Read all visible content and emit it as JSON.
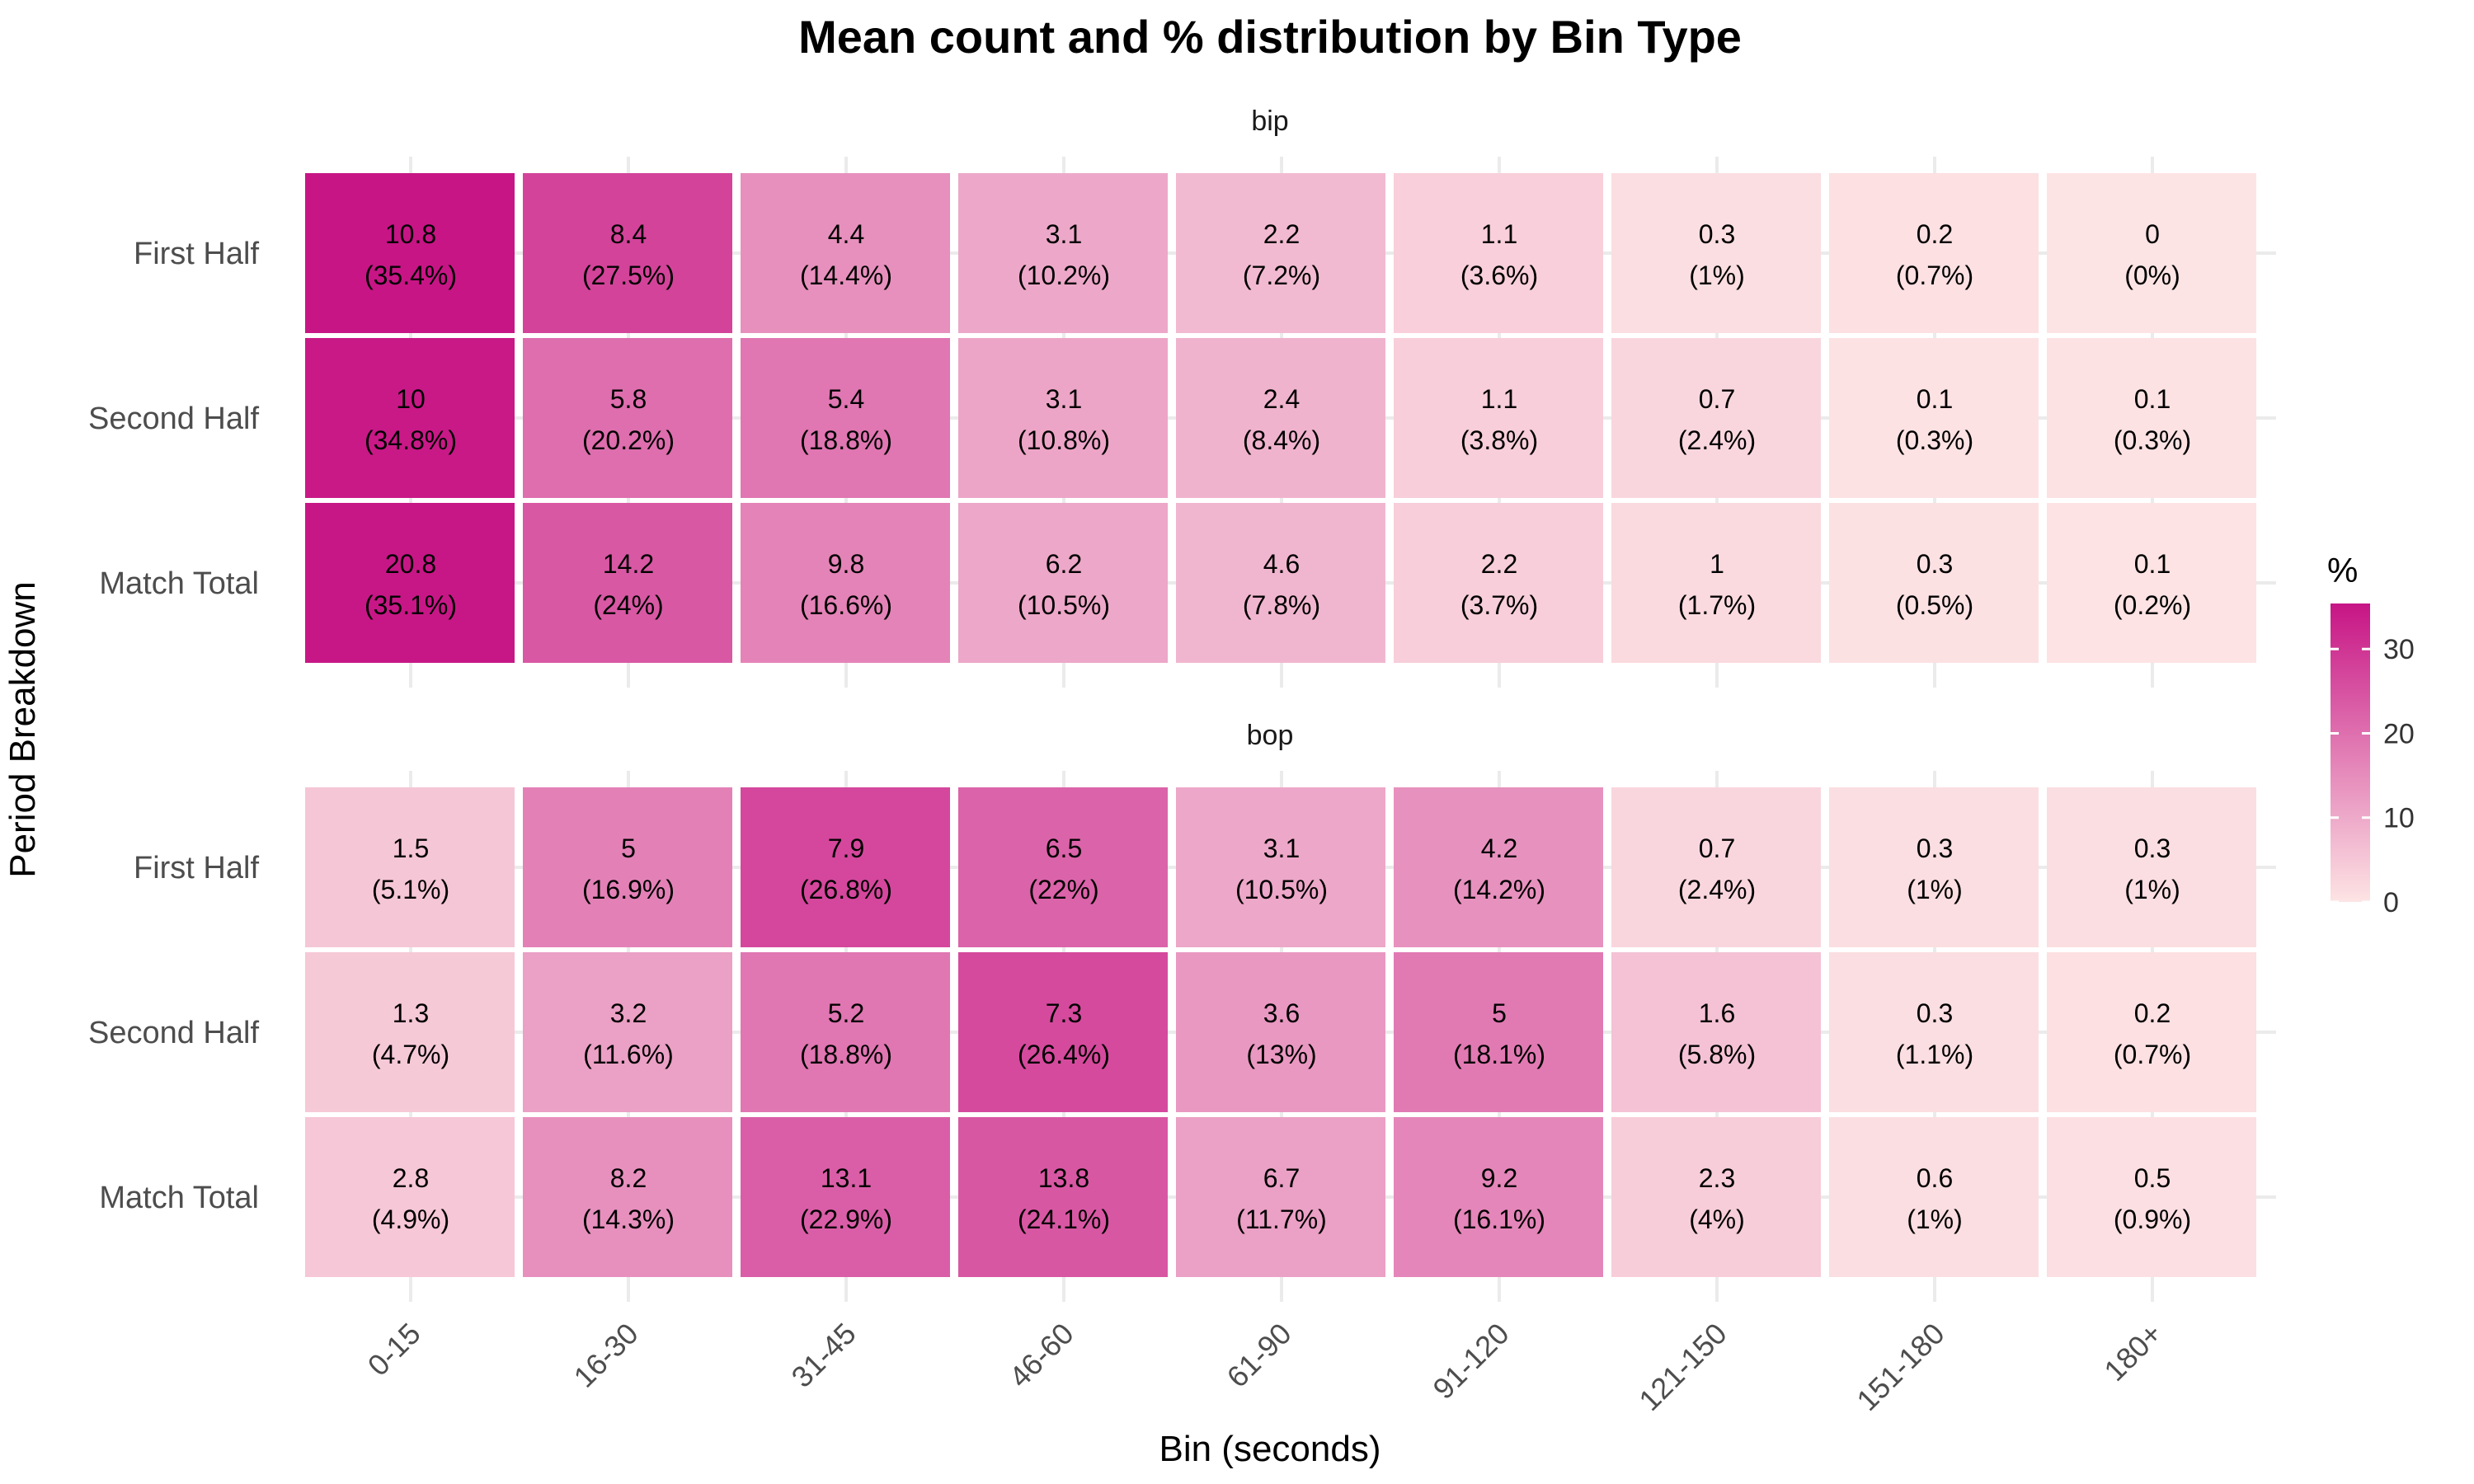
{
  "chart_data": {
    "type": "heatmap",
    "title": "Mean count and % distribution by Bin Type",
    "xlabel": "Bin (seconds)",
    "ylabel": "Period Breakdown",
    "x_categories": [
      "0-15",
      "16-30",
      "31-45",
      "46-60",
      "61-90",
      "91-120",
      "121-150",
      "151-180",
      "180+"
    ],
    "y_categories": [
      "First Half",
      "Second Half",
      "Match Total"
    ],
    "legend": {
      "title": "%",
      "placement": "right",
      "ticks": [
        0,
        10,
        20,
        30
      ],
      "range": [
        0,
        35.4
      ],
      "color_low": "#fde4e4",
      "color_high": "#c71585"
    },
    "facets": [
      {
        "name": "bip",
        "rows": [
          {
            "period": "First Half",
            "counts": [
              10.8,
              8.4,
              4.4,
              3.1,
              2.2,
              1.1,
              0.3,
              0.2,
              0
            ],
            "percents": [
              35.4,
              27.5,
              14.4,
              10.2,
              7.2,
              3.6,
              1,
              0.7,
              0
            ],
            "labels": [
              [
                "10.8",
                "(35.4%)"
              ],
              [
                "8.4",
                "(27.5%)"
              ],
              [
                "4.4",
                "(14.4%)"
              ],
              [
                "3.1",
                "(10.2%)"
              ],
              [
                "2.2",
                "(7.2%)"
              ],
              [
                "1.1",
                "(3.6%)"
              ],
              [
                "0.3",
                "(1%)"
              ],
              [
                "0.2",
                "(0.7%)"
              ],
              [
                "0",
                "(0%)"
              ]
            ]
          },
          {
            "period": "Second Half",
            "counts": [
              10,
              5.8,
              5.4,
              3.1,
              2.4,
              1.1,
              0.7,
              0.1,
              0.1
            ],
            "percents": [
              34.8,
              20.2,
              18.8,
              10.8,
              8.4,
              3.8,
              2.4,
              0.3,
              0.3
            ],
            "labels": [
              [
                "10",
                "(34.8%)"
              ],
              [
                "5.8",
                "(20.2%)"
              ],
              [
                "5.4",
                "(18.8%)"
              ],
              [
                "3.1",
                "(10.8%)"
              ],
              [
                "2.4",
                "(8.4%)"
              ],
              [
                "1.1",
                "(3.8%)"
              ],
              [
                "0.7",
                "(2.4%)"
              ],
              [
                "0.1",
                "(0.3%)"
              ],
              [
                "0.1",
                "(0.3%)"
              ]
            ]
          },
          {
            "period": "Match Total",
            "counts": [
              20.8,
              14.2,
              9.8,
              6.2,
              4.6,
              2.2,
              1,
              0.3,
              0.1
            ],
            "percents": [
              35.1,
              24,
              16.6,
              10.5,
              7.8,
              3.7,
              1.7,
              0.5,
              0.2
            ],
            "labels": [
              [
                "20.8",
                "(35.1%)"
              ],
              [
                "14.2",
                "(24%)"
              ],
              [
                "9.8",
                "(16.6%)"
              ],
              [
                "6.2",
                "(10.5%)"
              ],
              [
                "4.6",
                "(7.8%)"
              ],
              [
                "2.2",
                "(3.7%)"
              ],
              [
                "1",
                "(1.7%)"
              ],
              [
                "0.3",
                "(0.5%)"
              ],
              [
                "0.1",
                "(0.2%)"
              ]
            ]
          }
        ]
      },
      {
        "name": "bop",
        "rows": [
          {
            "period": "First Half",
            "counts": [
              1.5,
              5,
              7.9,
              6.5,
              3.1,
              4.2,
              0.7,
              0.3,
              0.3
            ],
            "percents": [
              5.1,
              16.9,
              26.8,
              22,
              10.5,
              14.2,
              2.4,
              1,
              1
            ],
            "labels": [
              [
                "1.5",
                "(5.1%)"
              ],
              [
                "5",
                "(16.9%)"
              ],
              [
                "7.9",
                "(26.8%)"
              ],
              [
                "6.5",
                "(22%)"
              ],
              [
                "3.1",
                "(10.5%)"
              ],
              [
                "4.2",
                "(14.2%)"
              ],
              [
                "0.7",
                "(2.4%)"
              ],
              [
                "0.3",
                "(1%)"
              ],
              [
                "0.3",
                "(1%)"
              ]
            ]
          },
          {
            "period": "Second Half",
            "counts": [
              1.3,
              3.2,
              5.2,
              7.3,
              3.6,
              5,
              1.6,
              0.3,
              0.2
            ],
            "percents": [
              4.7,
              11.6,
              18.8,
              26.4,
              13,
              18.1,
              5.8,
              1.1,
              0.7
            ],
            "labels": [
              [
                "1.3",
                "(4.7%)"
              ],
              [
                "3.2",
                "(11.6%)"
              ],
              [
                "5.2",
                "(18.8%)"
              ],
              [
                "7.3",
                "(26.4%)"
              ],
              [
                "3.6",
                "(13%)"
              ],
              [
                "5",
                "(18.1%)"
              ],
              [
                "1.6",
                "(5.8%)"
              ],
              [
                "0.3",
                "(1.1%)"
              ],
              [
                "0.2",
                "(0.7%)"
              ]
            ]
          },
          {
            "period": "Match Total",
            "counts": [
              2.8,
              8.2,
              13.1,
              13.8,
              6.7,
              9.2,
              2.3,
              0.6,
              0.5
            ],
            "percents": [
              4.9,
              14.3,
              22.9,
              24.1,
              11.7,
              16.1,
              4,
              1,
              0.9
            ],
            "labels": [
              [
                "2.8",
                "(4.9%)"
              ],
              [
                "8.2",
                "(14.3%)"
              ],
              [
                "13.1",
                "(22.9%)"
              ],
              [
                "13.8",
                "(24.1%)"
              ],
              [
                "6.7",
                "(11.7%)"
              ],
              [
                "9.2",
                "(16.1%)"
              ],
              [
                "2.3",
                "(4%)"
              ],
              [
                "0.6",
                "(1%)"
              ],
              [
                "0.5",
                "(0.9%)"
              ]
            ]
          }
        ]
      }
    ]
  }
}
